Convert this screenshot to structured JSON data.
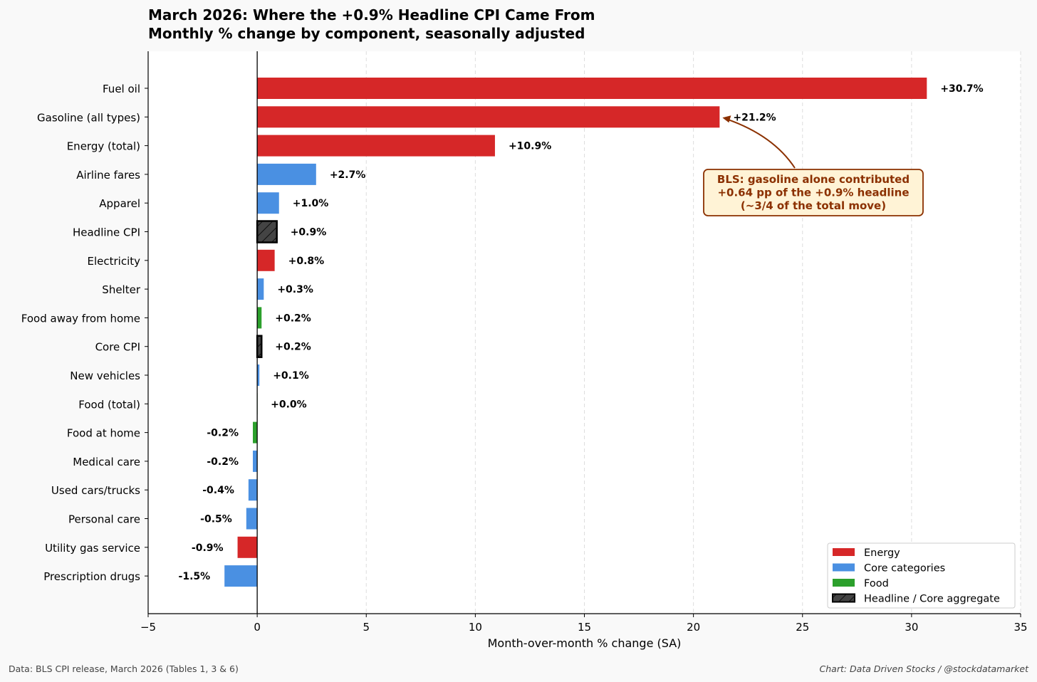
{
  "title": "March 2026: Where the +0.9% Headline CPI Came From",
  "subtitle": "Monthly % change by component, seasonally adjusted",
  "footer": {
    "source": "Data: BLS CPI release, March 2026 (Tables 1, 3 & 6)",
    "credit": "Chart: Data Driven Stocks / @stockdatamarket"
  },
  "colors": {
    "energy": "#d62728",
    "core": "#4a90e2",
    "food": "#2ca02c",
    "aggregate": "#444444",
    "annotation_text": "#8b3000",
    "annotation_fill": "#fff3d6",
    "grid": "#dddddd"
  },
  "chart_data": {
    "type": "bar",
    "orientation": "horizontal",
    "xlabel": "Month-over-month % change (SA)",
    "xlim": [
      -5,
      35
    ],
    "xticks": [
      -5,
      0,
      5,
      10,
      15,
      20,
      25,
      30,
      35
    ],
    "xtick_labels": [
      "−5",
      "0",
      "5",
      "10",
      "15",
      "20",
      "25",
      "30",
      "35"
    ],
    "grid": "x-dashed",
    "categories": [
      "Fuel oil",
      "Gasoline (all types)",
      "Energy (total)",
      "Airline fares",
      "Apparel",
      "Headline CPI",
      "Electricity",
      "Shelter",
      "Food away from home",
      "Core CPI",
      "New vehicles",
      "Food (total)",
      "Food at home",
      "Medical care",
      "Used cars/trucks",
      "Personal care",
      "Utility gas service",
      "Prescription drugs"
    ],
    "values": [
      30.7,
      21.2,
      10.9,
      2.7,
      1.0,
      0.9,
      0.8,
      0.3,
      0.2,
      0.2,
      0.1,
      0.0,
      -0.2,
      -0.2,
      -0.4,
      -0.5,
      -0.9,
      -1.5
    ],
    "value_labels": [
      "+30.7%",
      "+21.2%",
      "+10.9%",
      "+2.7%",
      "+1.0%",
      "+0.9%",
      "+0.8%",
      "+0.3%",
      "+0.2%",
      "+0.2%",
      "+0.1%",
      "+0.0%",
      "-0.2%",
      "-0.2%",
      "-0.4%",
      "-0.5%",
      "-0.9%",
      "-1.5%"
    ],
    "groups": [
      "energy",
      "energy",
      "energy",
      "core",
      "core",
      "aggregate",
      "energy",
      "core",
      "food",
      "aggregate",
      "core",
      "food",
      "food",
      "core",
      "core",
      "core",
      "energy",
      "core"
    ],
    "legend": {
      "placement": "bottom-right",
      "entries": [
        {
          "label": "Energy",
          "group": "energy"
        },
        {
          "label": "Core categories",
          "group": "core"
        },
        {
          "label": "Food",
          "group": "food"
        },
        {
          "label": "Headline / Core aggregate",
          "group": "aggregate"
        }
      ]
    },
    "annotation": {
      "lines": [
        "BLS: gasoline alone contributed",
        "+0.64 pp of the +0.9% headline",
        "(~3/4 of the total move)"
      ],
      "target_category": "Gasoline (all types)"
    }
  }
}
